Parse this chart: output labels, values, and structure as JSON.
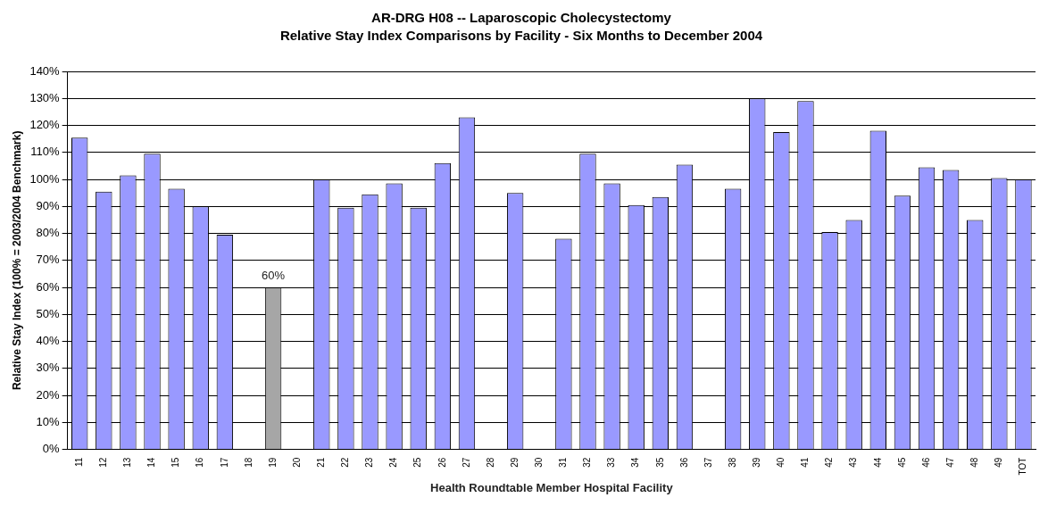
{
  "chart_data": {
    "type": "bar",
    "title": "AR-DRG H08 -- Laparoscopic Cholecystectomy",
    "subtitle": "Relative Stay Index Comparisons by Facility - Six Months to December 2004",
    "xlabel": "Health Roundtable Member Hospital Facility",
    "ylabel": "Relative Stay Index (100% = 2003/2004 Benchmark)",
    "categories": [
      "11",
      "12",
      "13",
      "14",
      "15",
      "16",
      "17",
      "18",
      "19",
      "20",
      "21",
      "22",
      "23",
      "24",
      "25",
      "26",
      "27",
      "28",
      "29",
      "30",
      "31",
      "32",
      "33",
      "34",
      "35",
      "36",
      "37",
      "38",
      "39",
      "40",
      "41",
      "42",
      "43",
      "44",
      "45",
      "46",
      "47",
      "48",
      "49",
      "TOT"
    ],
    "values": [
      115.5,
      95.5,
      101.5,
      109.5,
      96.5,
      90,
      79.5,
      null,
      60,
      null,
      100,
      89.5,
      94.5,
      98.5,
      89.5,
      106,
      123,
      null,
      95,
      null,
      78,
      109.5,
      98.5,
      90.5,
      93.5,
      105.5,
      null,
      96.5,
      130,
      117.5,
      129,
      80.5,
      85,
      118,
      94,
      104.5,
      103.5,
      85,
      100.5,
      100
    ],
    "colors": [
      "#9999ff",
      "#9999ff",
      "#9999ff",
      "#9999ff",
      "#9999ff",
      "#9999ff",
      "#9999ff",
      "#9999ff",
      "#a6a6a6",
      "#9999ff",
      "#9999ff",
      "#9999ff",
      "#9999ff",
      "#9999ff",
      "#9999ff",
      "#9999ff",
      "#9999ff",
      "#9999ff",
      "#9999ff",
      "#9999ff",
      "#9999ff",
      "#9999ff",
      "#9999ff",
      "#9999ff",
      "#9999ff",
      "#9999ff",
      "#9999ff",
      "#9999ff",
      "#9999ff",
      "#9999ff",
      "#9999ff",
      "#9999ff",
      "#9999ff",
      "#9999ff",
      "#9999ff",
      "#9999ff",
      "#9999ff",
      "#9999ff",
      "#9999ff",
      "#9999ff"
    ],
    "value_labels": [
      null,
      null,
      null,
      null,
      null,
      null,
      null,
      null,
      "60%",
      null,
      null,
      null,
      null,
      null,
      null,
      null,
      null,
      null,
      null,
      null,
      null,
      null,
      null,
      null,
      null,
      null,
      null,
      null,
      null,
      null,
      null,
      null,
      null,
      null,
      null,
      null,
      null,
      null,
      null,
      null
    ],
    "ylim": [
      0,
      140
    ],
    "yticks": [
      {
        "value": 0,
        "label": "0%"
      },
      {
        "value": 10,
        "label": "10%"
      },
      {
        "value": 20,
        "label": "20%"
      },
      {
        "value": 30,
        "label": "30%"
      },
      {
        "value": 40,
        "label": "40%"
      },
      {
        "value": 50,
        "label": "50%"
      },
      {
        "value": 60,
        "label": "60%"
      },
      {
        "value": 70,
        "label": "70%"
      },
      {
        "value": 80,
        "label": "80%"
      },
      {
        "value": 90,
        "label": "90%"
      },
      {
        "value": 100,
        "label": "100%"
      },
      {
        "value": 110,
        "label": "110%"
      },
      {
        "value": 120,
        "label": "120%"
      },
      {
        "value": 130,
        "label": "130%"
      },
      {
        "value": 140,
        "label": "140%"
      }
    ],
    "grid": "y",
    "legend": false
  }
}
